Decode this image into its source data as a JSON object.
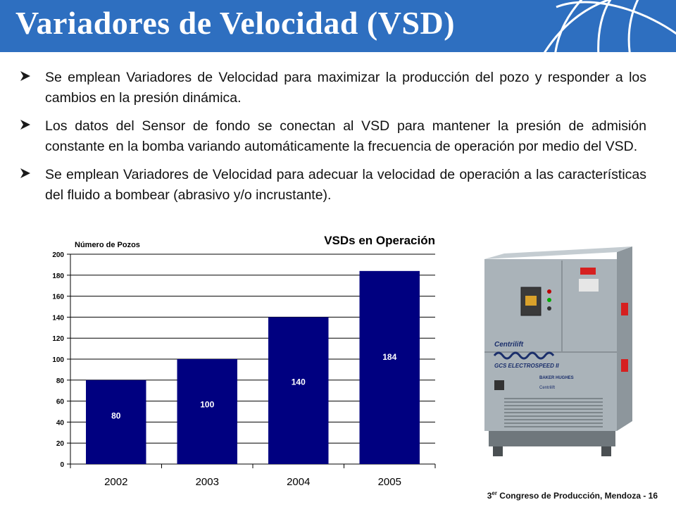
{
  "slide": {
    "title": "Variadores de Velocidad (VSD)",
    "bullets": [
      "Se emplean Variadores de Velocidad para maximizar la producción del pozo y responder a los cambios en la presión dinámica.",
      "Los datos del Sensor de fondo se conectan al VSD para mantener la presión de admisión  constante en la bomba variando automáticamente la frecuencia de operación por medio del VSD.",
      "Se emplean Variadores de Velocidad para adecuar la velocidad de operación a las características del fluido a bombear (abrasivo y/o incrustante)."
    ],
    "footer": {
      "ordinal": "3",
      "ordinal_suffix": "er",
      "text": " Congreso de Producción, Mendoza  -  16"
    },
    "photo_labels": {
      "brand": "Centrilift",
      "product": "GCS ELECTROSPEED II",
      "maker": "BAKER HUGHES",
      "sub_brand": "Centrilift"
    }
  },
  "colors": {
    "header": "#2e6fc0",
    "bar": "#000080",
    "arrow": "#1a1a1a",
    "cabinet": "#a9b2b8"
  },
  "chart_data": {
    "type": "bar",
    "title": "VSDs en Operación",
    "ylabel": "Número de Pozos",
    "xlabel": "",
    "categories": [
      "2002",
      "2003",
      "2004",
      "2005"
    ],
    "values": [
      80,
      100,
      140,
      184
    ],
    "data_labels": [
      "80",
      "100",
      "140",
      "184"
    ],
    "ylim": [
      0,
      200
    ],
    "yticks": [
      0,
      20,
      40,
      60,
      80,
      100,
      120,
      140,
      160,
      180,
      200
    ],
    "grid": true,
    "legend": "none"
  }
}
